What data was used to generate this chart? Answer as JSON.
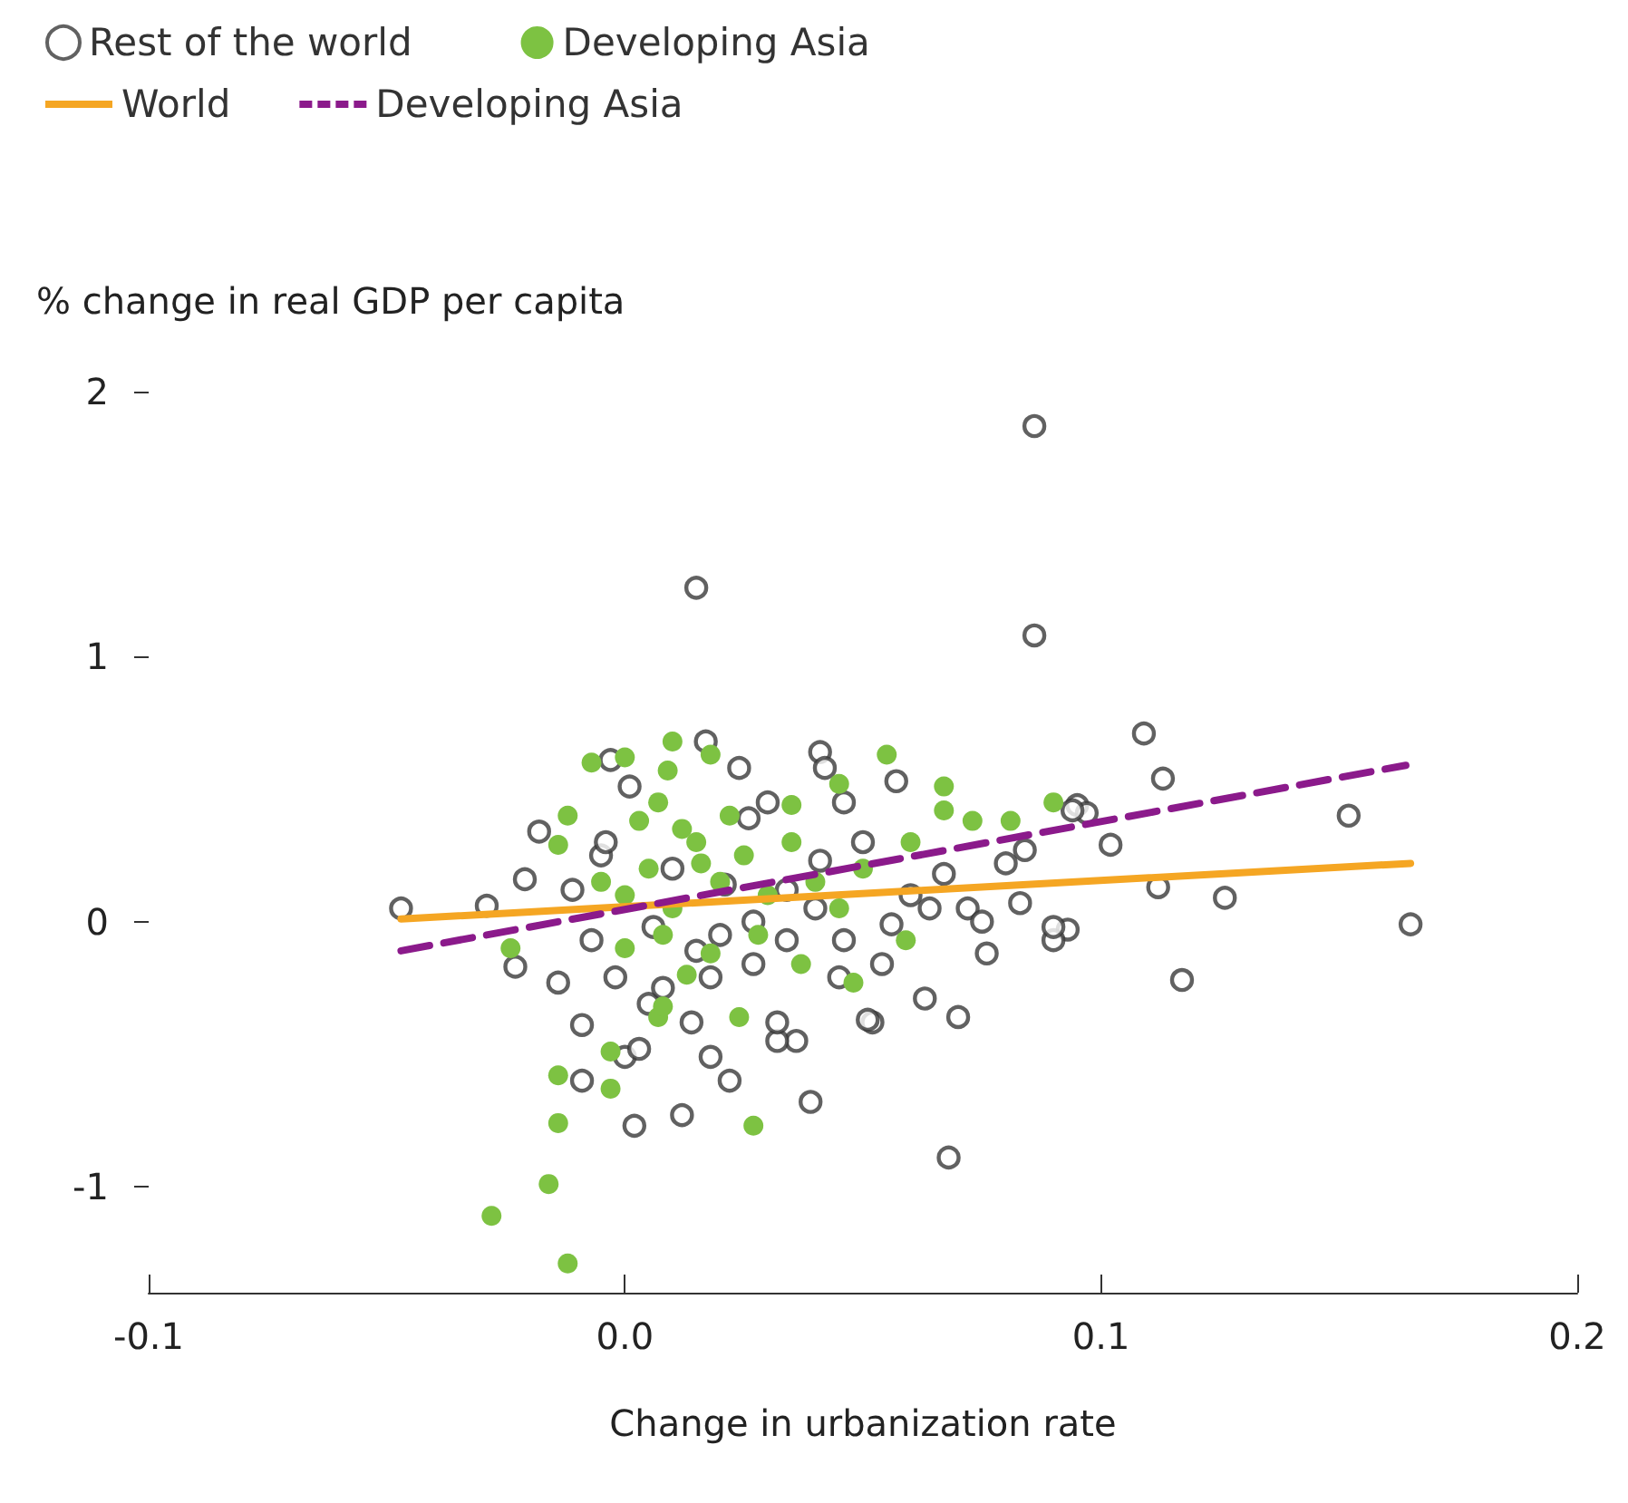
{
  "chart_data": {
    "type": "scatter",
    "xlabel": "Change in urbanization rate",
    "ylabel": "% change in real GDP per capita",
    "xlim": [
      -0.1,
      0.2
    ],
    "ylim": [
      -1.4,
      2
    ],
    "xticks": [
      -0.1,
      {
        "value": 0,
        "label": "0.0"
      },
      0.1,
      0.2
    ],
    "yticks": [
      -1,
      0,
      1,
      2
    ],
    "grid": false,
    "legend": "top left",
    "marker": "circle",
    "series": [
      {
        "name": "Rest of the world",
        "color": "#3a3a3a",
        "x": [
          0.086,
          0.086,
          0.015,
          0.109,
          0.113,
          0.152,
          0.165,
          0.126,
          0.117,
          0.112,
          0.102,
          0.093,
          0.09,
          0.095,
          0.097,
          0.068,
          0.039,
          0.012,
          0.002,
          -0.009,
          0.022,
          0.018,
          0.0,
          0.07,
          0.052,
          0.063,
          0.036,
          0.032,
          0.003,
          -0.009,
          0.017,
          0.024,
          0.041,
          0.042,
          0.057,
          -0.003,
          0.001,
          -0.018,
          0.03,
          0.046,
          0.094,
          0.084,
          0.08,
          -0.021,
          -0.029,
          -0.047,
          -0.023,
          -0.014,
          0.005,
          0.014,
          0.032,
          0.051,
          0.076,
          0.09,
          0.083,
          0.072,
          0.064,
          0.056,
          0.046,
          0.045,
          0.054,
          0.027,
          0.018,
          -0.002,
          -0.007,
          -0.011,
          -0.005,
          0.026,
          0.021,
          0.034,
          0.027,
          0.034,
          0.015,
          0.006,
          0.041,
          0.05,
          0.067,
          0.04,
          0.01,
          0.02,
          0.06,
          0.075,
          -0.004,
          0.008
        ],
        "values": [
          1.87,
          1.08,
          1.26,
          0.71,
          0.54,
          0.4,
          -0.01,
          0.09,
          -0.22,
          0.13,
          0.29,
          -0.03,
          -0.07,
          0.44,
          0.41,
          -0.89,
          -0.68,
          -0.73,
          -0.77,
          -0.6,
          -0.6,
          -0.51,
          -0.51,
          -0.36,
          -0.38,
          -0.29,
          -0.45,
          -0.45,
          -0.48,
          -0.39,
          0.68,
          0.58,
          0.64,
          0.58,
          0.53,
          0.61,
          0.51,
          0.34,
          0.45,
          0.45,
          0.42,
          0.27,
          0.22,
          0.16,
          0.06,
          0.05,
          -0.17,
          -0.23,
          -0.31,
          -0.38,
          -0.38,
          -0.37,
          -0.12,
          -0.02,
          0.07,
          0.05,
          0.05,
          -0.01,
          -0.07,
          -0.21,
          -0.16,
          -0.16,
          -0.21,
          -0.21,
          -0.07,
          0.12,
          0.25,
          0.39,
          0.14,
          0.12,
          0.0,
          -0.07,
          -0.11,
          -0.02,
          0.23,
          0.3,
          0.18,
          0.05,
          0.2,
          -0.05,
          0.1,
          0.0,
          0.3,
          -0.25
        ]
      },
      {
        "name": "Developing Asia",
        "color": "#7dc242",
        "x": [
          -0.028,
          -0.012,
          -0.016,
          -0.014,
          0.027,
          -0.003,
          -0.014,
          -0.003,
          0.024,
          0.007,
          0.01,
          -0.007,
          0.0,
          0.055,
          0.067,
          0.09,
          0.067,
          0.045,
          0.035,
          0.073,
          0.081,
          0.018,
          0.009,
          0.059,
          0.048,
          0.037,
          0.008,
          -0.024,
          -0.014,
          -0.012,
          0.0,
          0.005,
          0.01,
          0.015,
          0.02,
          0.008,
          0.012,
          0.025,
          0.03,
          -0.005,
          0.0,
          0.018,
          0.022,
          0.003,
          0.028,
          0.035,
          0.04,
          0.05,
          0.045,
          0.06,
          0.007,
          0.013,
          0.016
        ],
        "values": [
          -1.11,
          -1.29,
          -0.99,
          -0.76,
          -0.77,
          -0.63,
          -0.58,
          -0.49,
          -0.36,
          -0.36,
          0.68,
          0.6,
          0.62,
          0.63,
          0.51,
          0.45,
          0.42,
          0.52,
          0.44,
          0.38,
          0.38,
          0.63,
          0.57,
          -0.07,
          -0.23,
          -0.16,
          -0.32,
          -0.1,
          0.29,
          0.4,
          0.1,
          0.2,
          0.05,
          0.3,
          0.15,
          -0.05,
          0.35,
          0.25,
          0.1,
          0.15,
          -0.1,
          -0.12,
          0.4,
          0.38,
          -0.05,
          0.3,
          0.15,
          0.2,
          0.05,
          0.3,
          0.45,
          -0.2,
          0.22
        ]
      },
      {
        "name": "World",
        "type": "line",
        "color": "#f5a623",
        "line_style": "solid",
        "marker": "none",
        "x": [
          -0.047,
          0.165
        ],
        "values": [
          0.01,
          0.22
        ]
      },
      {
        "name": "Developing Asia",
        "type": "line",
        "color": "#8b1a8b",
        "line_style": "dashed",
        "marker": "none",
        "x": [
          -0.047,
          0.164
        ],
        "values": [
          -0.11,
          0.59
        ]
      }
    ]
  }
}
